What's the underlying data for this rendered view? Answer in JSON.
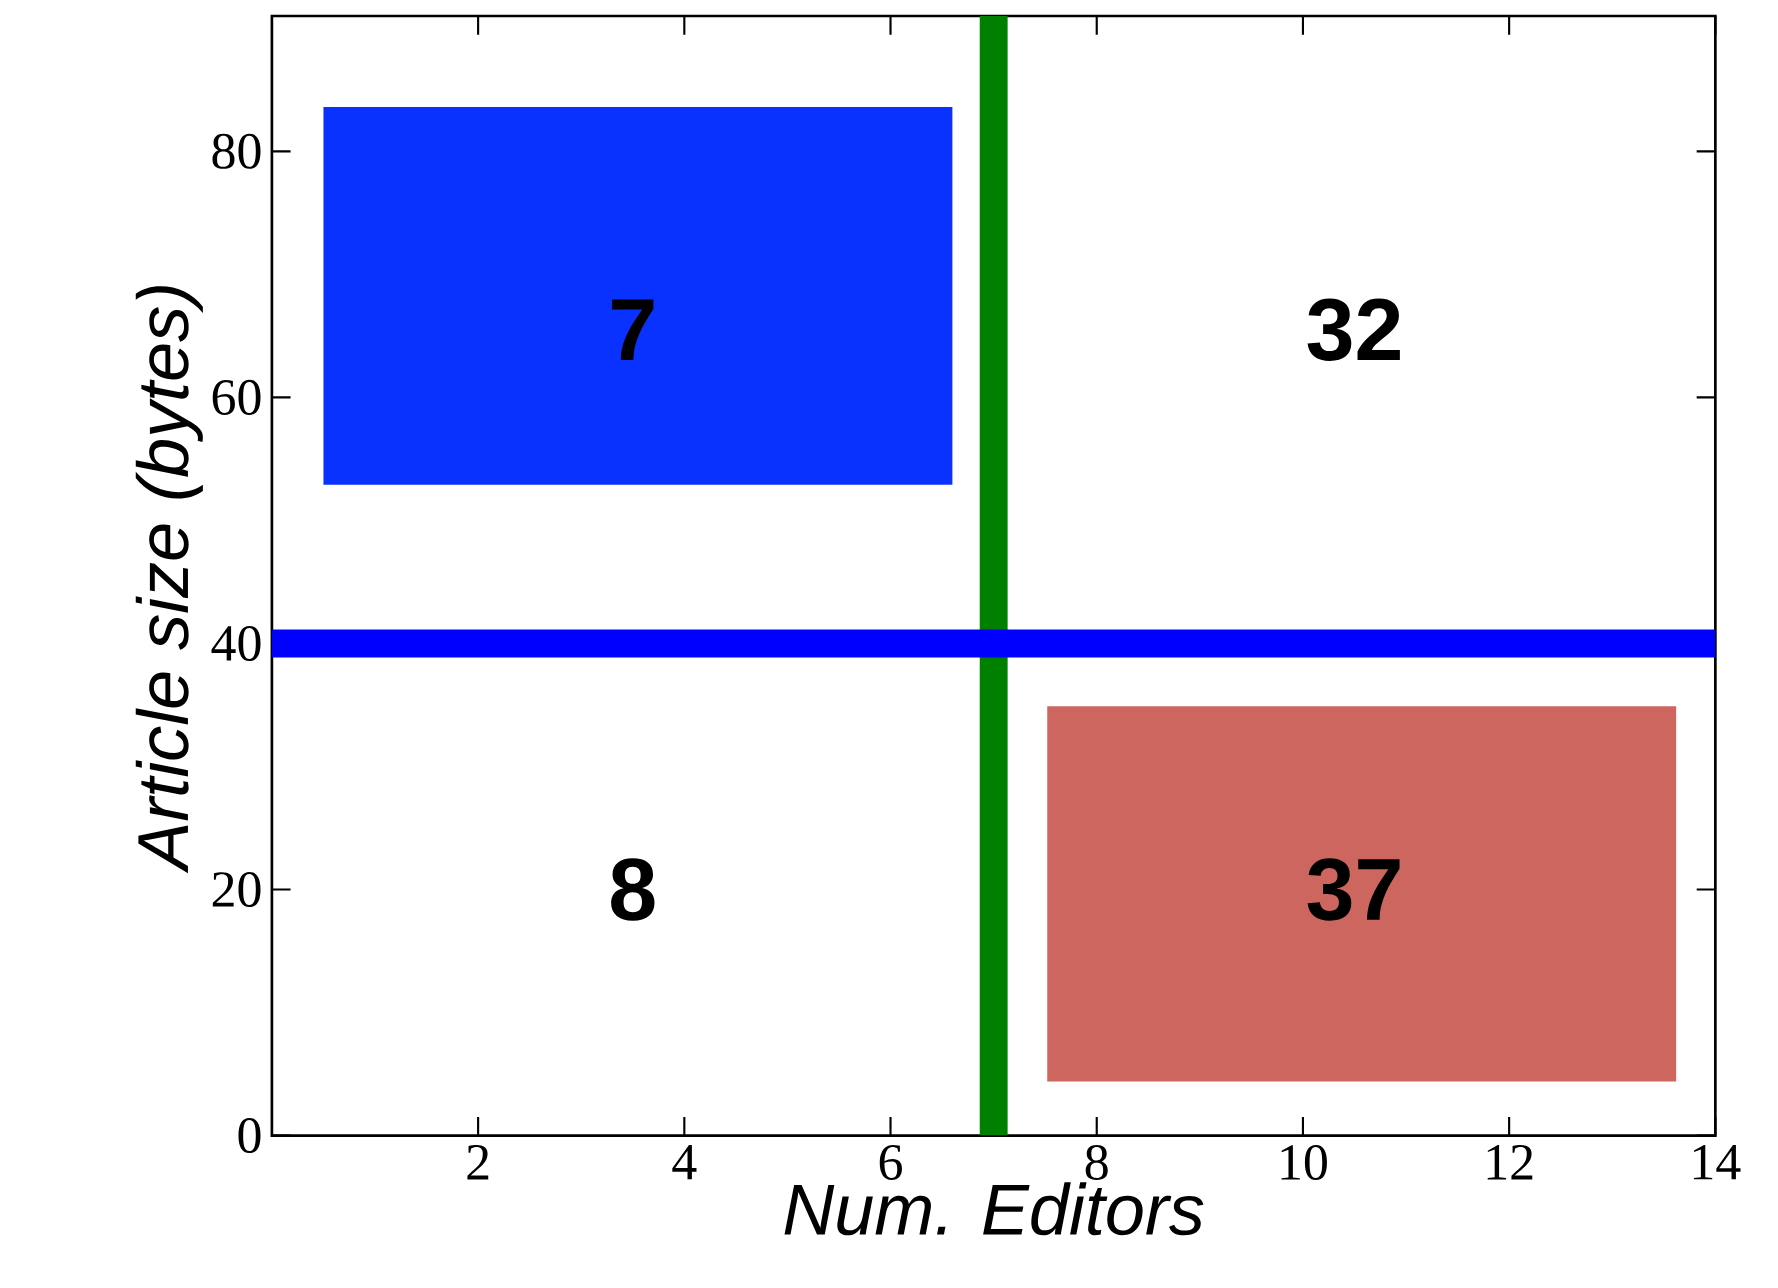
{
  "chart_data": {
    "type": "bar",
    "xlabel": "Num. Editors",
    "ylabel": "Article size (bytes)",
    "x": [
      3.55,
      10.57
    ],
    "base": [
      52.9,
      4.4
    ],
    "values": [
      30.7,
      30.5
    ],
    "colors": [
      "#0a32ff",
      "#cd665e"
    ],
    "xlim": [
      0,
      14
    ],
    "ylim": [
      0,
      91
    ],
    "xticks": [
      2,
      4,
      6,
      8,
      10,
      12,
      14
    ],
    "yticks": [
      0,
      20,
      40,
      60,
      80
    ],
    "ref_lines": [
      {
        "axis": "x",
        "value": 7,
        "color": "#008000"
      },
      {
        "axis": "y",
        "value": 40,
        "color": "#0000ff"
      }
    ],
    "annotations": [
      "7",
      "32",
      "8",
      "37"
    ]
  }
}
